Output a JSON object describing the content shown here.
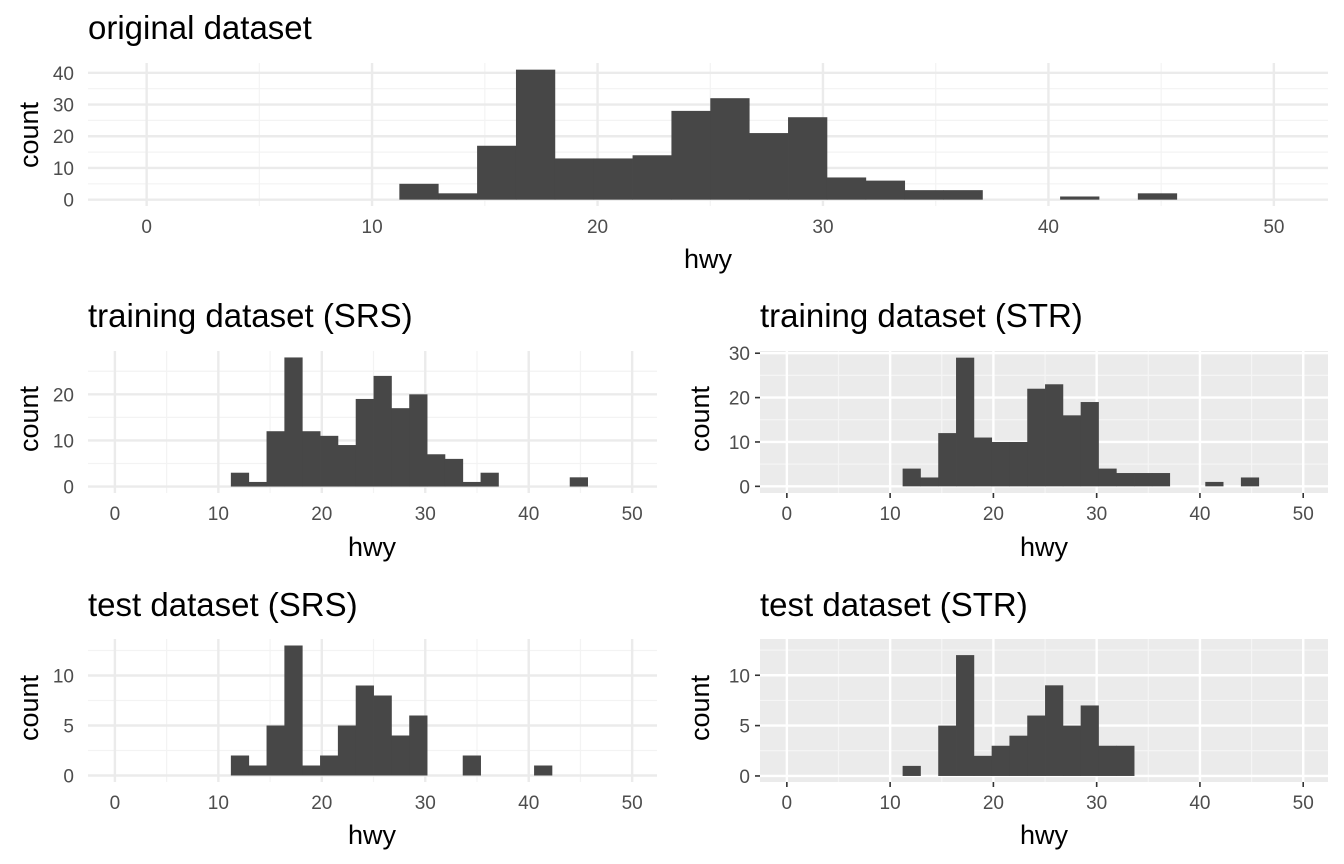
{
  "panels": [
    {
      "id": "original",
      "title": "original dataset",
      "theme": "minimal",
      "xlabel": "hwy",
      "ylabel": "count",
      "xlim": [
        -2.6,
        52.4
      ],
      "ylim": [
        -2.0,
        43.1
      ],
      "xticks": [
        0,
        10,
        20,
        30,
        40,
        50
      ],
      "yticks": [
        0,
        10,
        20,
        30,
        40
      ],
      "bin_width": 1.724,
      "bin_start": 11.21,
      "counts": [
        5,
        2,
        17,
        41,
        13,
        13,
        14,
        28,
        32,
        21,
        26,
        7,
        6,
        3,
        3,
        0,
        0,
        1,
        0,
        2
      ]
    },
    {
      "id": "train-srs",
      "title": "training dataset (SRS)",
      "theme": "minimal",
      "xlabel": "hwy",
      "ylabel": "count",
      "xlim": [
        -2.6,
        52.4
      ],
      "ylim": [
        -1.4,
        29.4
      ],
      "xticks": [
        0,
        10,
        20,
        30,
        40,
        50
      ],
      "yticks": [
        0,
        10,
        20
      ],
      "bin_width": 1.724,
      "bin_start": 11.21,
      "counts": [
        3,
        1,
        12,
        28,
        12,
        11,
        9,
        19,
        24,
        17,
        20,
        7,
        6,
        1,
        3,
        0,
        0,
        0,
        0,
        2
      ]
    },
    {
      "id": "train-str",
      "title": "training dataset (STR)",
      "theme": "grey",
      "xlabel": "hwy",
      "ylabel": "count",
      "xlim": [
        -2.6,
        52.4
      ],
      "ylim": [
        -1.5,
        30.5
      ],
      "xticks": [
        0,
        10,
        20,
        30,
        40,
        50
      ],
      "yticks": [
        0,
        10,
        20,
        30
      ],
      "bin_width": 1.724,
      "bin_start": 11.21,
      "counts": [
        4,
        2,
        12,
        29,
        11,
        10,
        10,
        22,
        23,
        16,
        19,
        4,
        3,
        3,
        3,
        0,
        0,
        1,
        0,
        2
      ]
    },
    {
      "id": "test-srs",
      "title": "test dataset (SRS)",
      "theme": "minimal",
      "xlabel": "hwy",
      "ylabel": "count",
      "xlim": [
        -2.6,
        52.4
      ],
      "ylim": [
        -0.65,
        13.65
      ],
      "xticks": [
        0,
        10,
        20,
        30,
        40,
        50
      ],
      "yticks": [
        0,
        5,
        10
      ],
      "bin_width": 1.724,
      "bin_start": 11.21,
      "counts": [
        2,
        1,
        5,
        13,
        1,
        2,
        5,
        9,
        8,
        4,
        6,
        0,
        0,
        2,
        0,
        0,
        0,
        1,
        0,
        0
      ]
    },
    {
      "id": "test-str",
      "title": "test dataset (STR)",
      "theme": "grey",
      "xlabel": "hwy",
      "ylabel": "count",
      "xlim": [
        -2.6,
        52.4
      ],
      "ylim": [
        -0.6,
        13.6
      ],
      "xticks": [
        0,
        10,
        20,
        30,
        40,
        50
      ],
      "yticks": [
        0,
        5,
        10
      ],
      "bin_width": 1.724,
      "bin_start": 11.21,
      "counts": [
        1,
        0,
        5,
        12,
        2,
        3,
        4,
        6,
        9,
        5,
        7,
        3,
        3,
        0,
        0,
        0,
        0,
        0,
        0,
        0
      ]
    }
  ],
  "colors": {
    "bar": "#474747",
    "grid_minimal_major": "#ebebeb",
    "grid_minimal_minor": "#f3f3f3",
    "grey_panel": "#ebebeb",
    "grey_grid_major": "#ffffff",
    "grey_grid_minor": "#f5f5f5",
    "tick_text": "#4d4d4d",
    "tick_mark": "#333333"
  },
  "chart_data": [
    {
      "type": "bar",
      "title": "original dataset",
      "xlabel": "hwy",
      "ylabel": "count",
      "x": [
        12.07,
        13.79,
        15.52,
        17.24,
        18.97,
        20.69,
        22.41,
        24.14,
        25.86,
        27.59,
        29.31,
        31.03,
        32.76,
        34.48,
        36.21,
        37.93,
        39.66,
        41.38,
        43.1,
        44.83
      ],
      "values": [
        5,
        2,
        17,
        41,
        13,
        13,
        14,
        28,
        32,
        21,
        26,
        7,
        6,
        3,
        3,
        0,
        0,
        1,
        0,
        2
      ],
      "xlim": [
        -2.6,
        52.4
      ],
      "ylim": [
        0,
        43
      ],
      "grid": true
    },
    {
      "type": "bar",
      "title": "training dataset (SRS)",
      "xlabel": "hwy",
      "ylabel": "count",
      "x": [
        12.07,
        13.79,
        15.52,
        17.24,
        18.97,
        20.69,
        22.41,
        24.14,
        25.86,
        27.59,
        29.31,
        31.03,
        32.76,
        34.48,
        36.21,
        37.93,
        39.66,
        41.38,
        43.1,
        44.83
      ],
      "values": [
        3,
        1,
        12,
        28,
        12,
        11,
        9,
        19,
        24,
        17,
        20,
        7,
        6,
        1,
        3,
        0,
        0,
        0,
        0,
        2
      ],
      "xlim": [
        -2.6,
        52.4
      ],
      "ylim": [
        0,
        29
      ],
      "grid": true
    },
    {
      "type": "bar",
      "title": "training dataset (STR)",
      "xlabel": "hwy",
      "ylabel": "count",
      "x": [
        12.07,
        13.79,
        15.52,
        17.24,
        18.97,
        20.69,
        22.41,
        24.14,
        25.86,
        27.59,
        29.31,
        31.03,
        32.76,
        34.48,
        36.21,
        37.93,
        39.66,
        41.38,
        43.1,
        44.83
      ],
      "values": [
        4,
        2,
        12,
        29,
        11,
        10,
        10,
        22,
        23,
        16,
        19,
        4,
        3,
        3,
        3,
        0,
        0,
        1,
        0,
        2
      ],
      "xlim": [
        -2.6,
        52.4
      ],
      "ylim": [
        0,
        30
      ],
      "grid": true
    },
    {
      "type": "bar",
      "title": "test dataset (SRS)",
      "xlabel": "hwy",
      "ylabel": "count",
      "x": [
        12.07,
        13.79,
        15.52,
        17.24,
        18.97,
        20.69,
        22.41,
        24.14,
        25.86,
        27.59,
        29.31,
        31.03,
        32.76,
        34.48,
        36.21,
        37.93,
        39.66,
        41.38,
        43.1,
        44.83
      ],
      "values": [
        2,
        1,
        5,
        13,
        1,
        2,
        5,
        9,
        8,
        4,
        6,
        0,
        0,
        2,
        0,
        0,
        0,
        1,
        0,
        0
      ],
      "xlim": [
        -2.6,
        52.4
      ],
      "ylim": [
        0,
        13
      ],
      "grid": true
    },
    {
      "type": "bar",
      "title": "test dataset (STR)",
      "xlabel": "hwy",
      "ylabel": "count",
      "x": [
        12.07,
        13.79,
        15.52,
        17.24,
        18.97,
        20.69,
        22.41,
        24.14,
        25.86,
        27.59,
        29.31,
        31.03,
        32.76,
        34.48,
        36.21,
        37.93,
        39.66,
        41.38,
        43.1,
        44.83
      ],
      "values": [
        1,
        0,
        5,
        12,
        2,
        3,
        4,
        6,
        9,
        5,
        7,
        3,
        3,
        0,
        0,
        0,
        0,
        0,
        0,
        0
      ],
      "xlim": [
        -2.6,
        52.4
      ],
      "ylim": [
        0,
        13
      ],
      "grid": true
    }
  ]
}
